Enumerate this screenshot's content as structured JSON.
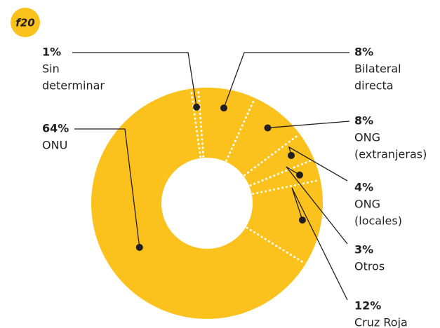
{
  "chart_data": {
    "type": "donut",
    "badge": "f20",
    "labels": [
      [
        "Sin",
        "determinar"
      ],
      [
        "Bilateral",
        "directa"
      ],
      [
        "ONG",
        "(extranjeras)"
      ],
      [
        "ONG",
        "(locales)"
      ],
      [
        "Otros"
      ],
      [
        "Cruz Roja"
      ],
      [
        "ONU"
      ]
    ],
    "values": [
      1,
      8,
      8,
      4,
      3,
      12,
      64
    ],
    "value_labels": [
      "1%",
      "8%",
      "8%",
      "4%",
      "3%",
      "12%",
      "64%"
    ],
    "color": "#fbc11d"
  }
}
